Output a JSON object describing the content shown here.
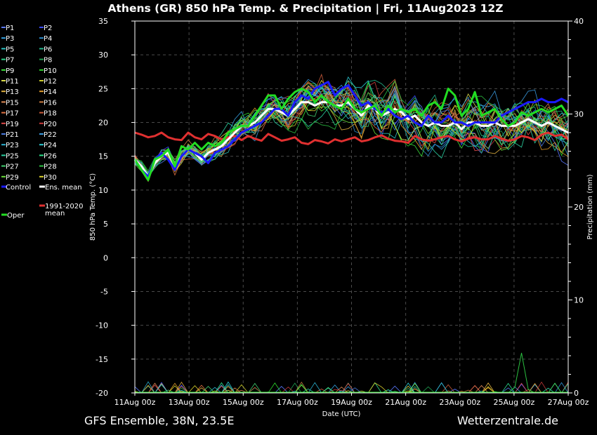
{
  "header": {
    "title": "Athens  (GR)  850 hPa Temp. & Precipitation | Fri, 11Aug2023 12Z"
  },
  "footer": {
    "left": "GFS Ensemble, 38N, 23.5E",
    "right": "Wetterzentrale.de"
  },
  "colors": {
    "background": "#000000",
    "grid": "#4a4a4a",
    "control": "#1a1aff",
    "ens_mean": "#ffffff",
    "climate_mean": "#e03030",
    "oper": "#22dd22"
  },
  "chart_data": {
    "type": "line",
    "x_tick_labels": [
      "11Aug 00z",
      "13Aug 00z",
      "15Aug 00z",
      "17Aug 00z",
      "19Aug 00z",
      "21Aug 00z",
      "23Aug 00z",
      "25Aug 00z",
      "27Aug 00z"
    ],
    "xlabel": "Date (UTC)",
    "ylabel": "850 hPa Temp. (°C)",
    "ylabel2": "Precipitation (mm)",
    "ylim": [
      -20,
      35
    ],
    "y_ticks": [
      35,
      30,
      25,
      20,
      15,
      10,
      5,
      0,
      -5,
      -10,
      -15,
      -20
    ],
    "ylim2": [
      0,
      40
    ],
    "y2_ticks": [
      40,
      30,
      20,
      10,
      0
    ],
    "grid": true,
    "legend_entries": [
      {
        "label": "P1",
        "color": "#5a78ff"
      },
      {
        "label": "P2",
        "color": "#3a4cff"
      },
      {
        "label": "P3",
        "color": "#33a0e0"
      },
      {
        "label": "P4",
        "color": "#2a8acb"
      },
      {
        "label": "P5",
        "color": "#2ac2c2"
      },
      {
        "label": "P6",
        "color": "#22b48a"
      },
      {
        "label": "P7",
        "color": "#2ad28a"
      },
      {
        "label": "P8",
        "color": "#1f9d4f"
      },
      {
        "label": "P9",
        "color": "#3adf3a"
      },
      {
        "label": "P10",
        "color": "#2ad22a"
      },
      {
        "label": "P11",
        "color": "#d8d84a"
      },
      {
        "label": "P12",
        "color": "#c8c828"
      },
      {
        "label": "P13",
        "color": "#e0b040"
      },
      {
        "label": "P14",
        "color": "#e09a2a"
      },
      {
        "label": "P15",
        "color": "#e08a55"
      },
      {
        "label": "P16",
        "color": "#c87a40"
      },
      {
        "label": "P17",
        "color": "#e07040"
      },
      {
        "label": "P18",
        "color": "#c85a3a"
      },
      {
        "label": "P19",
        "color": "#e04a4a"
      },
      {
        "label": "P20",
        "color": "#c83a3a"
      },
      {
        "label": "P21",
        "color": "#4a7adf"
      },
      {
        "label": "P22",
        "color": "#3a9adf"
      },
      {
        "label": "P23",
        "color": "#2ab0d0"
      },
      {
        "label": "P24",
        "color": "#2ac8d0"
      },
      {
        "label": "P25",
        "color": "#2ad0a0"
      },
      {
        "label": "P26",
        "color": "#2adf8a"
      },
      {
        "label": "P27",
        "color": "#40d070"
      },
      {
        "label": "P28",
        "color": "#2ac040"
      },
      {
        "label": "P29",
        "color": "#6adf3a"
      },
      {
        "label": "P30",
        "color": "#d8d02a"
      }
    ],
    "main_series": [
      {
        "name": "Control",
        "color": "#1a1aff",
        "values": [
          14.5,
          13,
          12,
          14.5,
          15.5,
          14.5,
          13,
          15,
          16,
          15.5,
          15,
          14,
          15.5,
          16,
          16.5,
          17.5,
          18.5,
          19,
          19.5,
          20,
          21,
          22,
          22,
          21,
          23,
          24,
          23.5,
          25,
          25.5,
          26,
          24,
          25,
          25.5,
          24,
          22.5,
          23,
          22,
          21.5,
          22,
          21,
          20.5,
          21,
          20,
          19.5,
          21,
          20,
          20,
          21,
          20,
          20,
          19.5,
          20,
          20,
          20,
          20,
          21,
          21.5,
          22,
          22.5,
          23,
          23,
          23.5,
          23,
          23,
          23.5,
          23
        ]
      },
      {
        "name": "Ens. mean",
        "color": "#ffffff",
        "values": [
          14.5,
          13.5,
          12,
          14,
          15,
          15.5,
          13.5,
          15,
          16,
          15.5,
          14.5,
          15.5,
          16,
          16.5,
          17.5,
          18.5,
          19.5,
          19.5,
          20,
          21,
          22,
          22,
          21.5,
          21,
          22,
          23,
          23,
          22.5,
          23,
          23,
          22.5,
          22.5,
          23,
          22,
          21,
          22.5,
          22,
          21,
          21.5,
          22,
          21.5,
          20.5,
          21,
          20,
          19.5,
          20,
          19.5,
          19.5,
          20,
          19,
          20,
          20,
          19.5,
          19.5,
          20,
          19.5,
          19.5,
          19.5,
          20,
          20.5,
          20,
          19.5,
          20,
          19.5,
          19,
          18.5
        ]
      },
      {
        "name": "1991-2020 mean",
        "color": "#e03030",
        "values": [
          18.5,
          18.2,
          17.8,
          18,
          18.5,
          17.8,
          17.5,
          17.4,
          18.5,
          17.8,
          17.5,
          18.3,
          18,
          17.5,
          17.8,
          18,
          17.4,
          18,
          17.6,
          17.3,
          18.3,
          17.8,
          17.3,
          17.5,
          17.8,
          17,
          16.8,
          17.4,
          17.2,
          16.9,
          17.5,
          17.2,
          17.5,
          17.8,
          17.2,
          17.4,
          17.8,
          18.1,
          17.6,
          17.3,
          17.2,
          17,
          18,
          17.5,
          17.3,
          17.5,
          17.8,
          18,
          17.5,
          17.2,
          17.6,
          17.8,
          17.5,
          17.5,
          18,
          17.6,
          17.3,
          17.5,
          18,
          17.8,
          17.4,
          18.2,
          18.5,
          18,
          18.2,
          17.5
        ]
      },
      {
        "name": "Oper",
        "color": "#22dd22",
        "values": [
          14.5,
          13,
          11.5,
          14.5,
          15,
          16,
          13.5,
          16.5,
          16,
          17,
          16,
          17,
          16.5,
          17,
          18.5,
          19,
          19.5,
          19.5,
          21,
          22.5,
          24,
          24,
          22,
          23.5,
          24.5,
          25,
          24.5,
          23,
          24,
          23,
          22.5,
          22,
          23.5,
          22,
          21.5,
          22,
          22.5,
          21,
          22.5,
          21.5,
          22,
          21.5,
          22,
          21,
          22.5,
          23,
          22,
          25,
          24,
          21,
          22,
          24.5,
          21,
          21.5,
          22,
          20.5,
          19.5,
          20,
          21.5,
          21,
          21.5,
          22,
          21.5,
          22,
          22.5,
          21
        ]
      }
    ]
  }
}
